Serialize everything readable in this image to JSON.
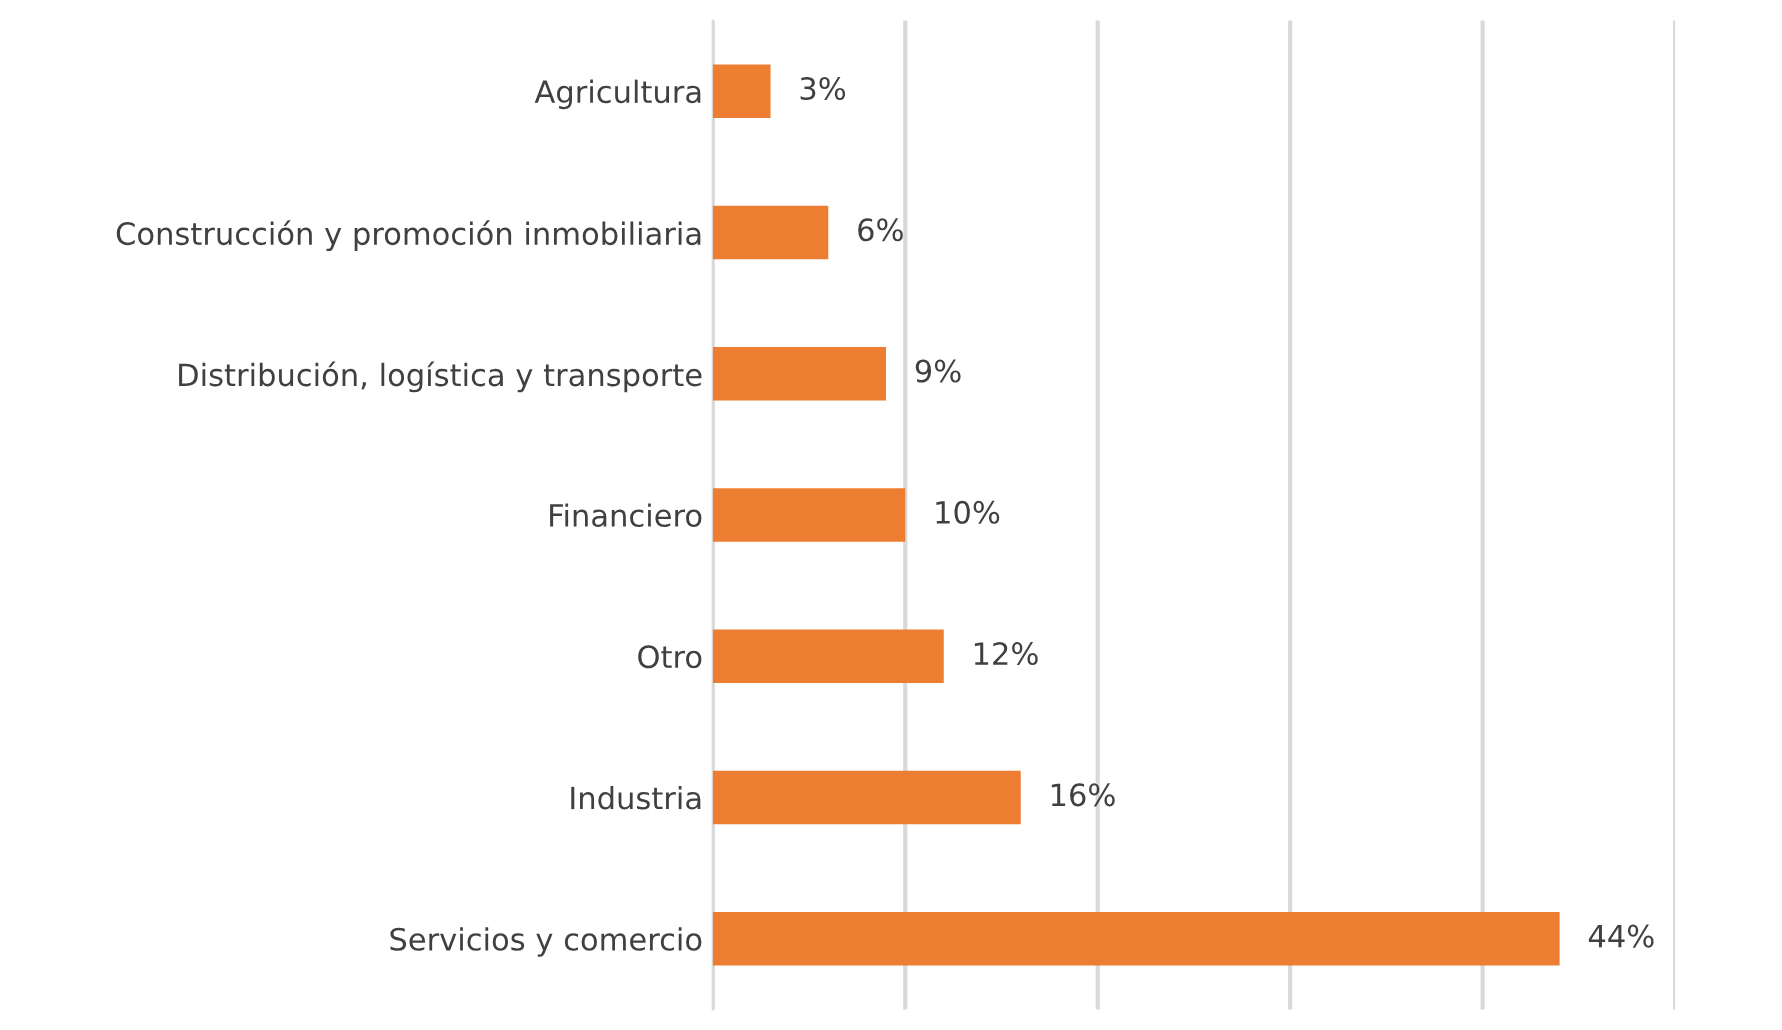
{
  "chart_data": {
    "type": "bar",
    "orientation": "horizontal",
    "categories": [
      "Agricultura",
      "Construcción y promoción inmobiliaria",
      "Distribución, logística y transporte",
      "Financiero",
      "Otro",
      "Industria",
      "Servicios y comercio"
    ],
    "values": [
      3,
      6,
      9,
      10,
      12,
      16,
      44
    ],
    "value_labels": [
      "3%",
      "6%",
      "9%",
      "10%",
      "12%",
      "16%",
      "44%"
    ],
    "color": "#ed7d31",
    "xlim": [
      0,
      50
    ],
    "xticks": [
      {
        "value": 0,
        "label": null
      },
      {
        "value": 10,
        "label": null
      },
      {
        "value": 20,
        "label": null
      },
      {
        "value": 30,
        "label": null
      },
      {
        "value": 40,
        "label": null
      },
      {
        "value": 50,
        "label": null
      }
    ],
    "grid": "x",
    "tick_labels": "y",
    "legend": false
  }
}
